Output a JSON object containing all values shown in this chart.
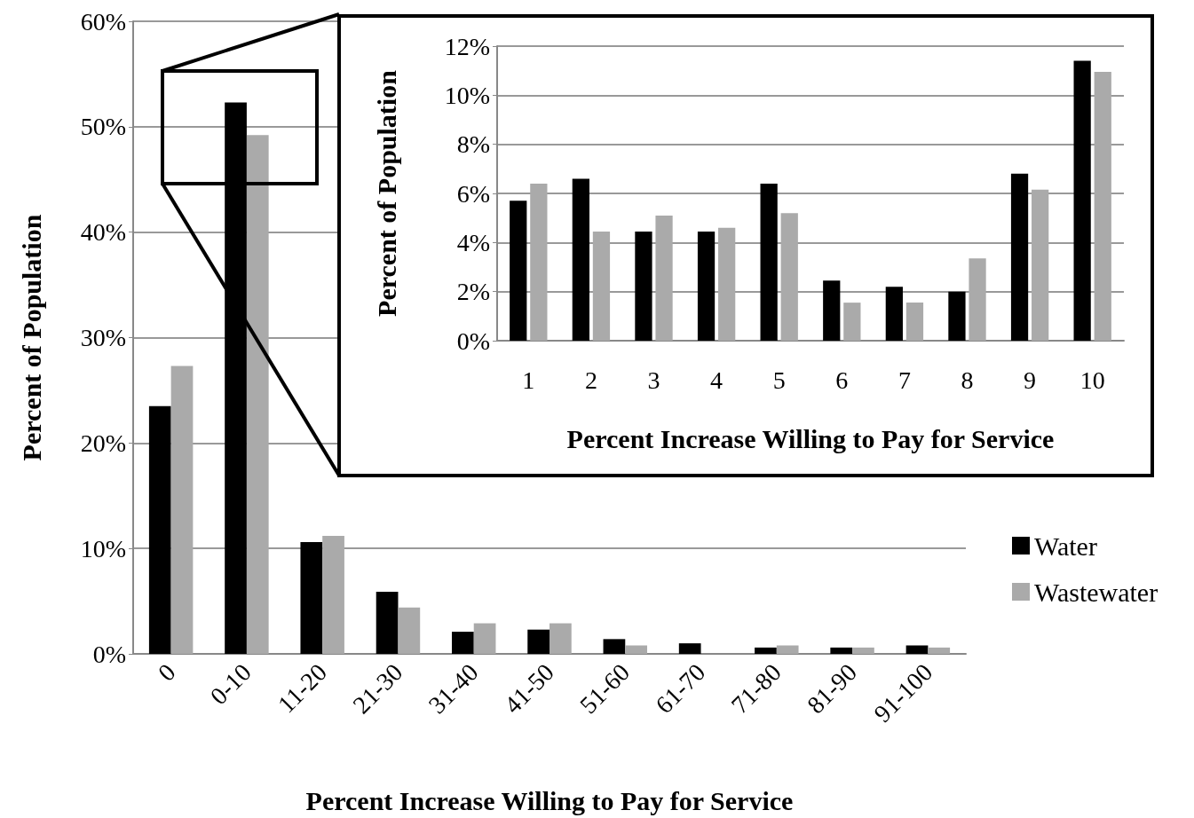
{
  "chart_data": [
    {
      "type": "bar",
      "xlabel": "Percent Increase Willing to Pay for Service",
      "ylabel": "Percent of Population",
      "categories": [
        "0",
        "0-10",
        "11-20",
        "21-30",
        "31-40",
        "41-50",
        "51-60",
        "61-70",
        "71-80",
        "81-90",
        "91-100"
      ],
      "series": [
        {
          "name": "Water",
          "color": "#000000",
          "values": [
            23.5,
            52.3,
            10.6,
            5.9,
            2.1,
            2.3,
            1.4,
            1.0,
            0.6,
            0.6,
            0.8
          ]
        },
        {
          "name": "Wastewater",
          "color": "#aaaaaa",
          "values": [
            27.3,
            49.2,
            11.2,
            4.4,
            2.9,
            2.9,
            0.8,
            null,
            0.8,
            0.6,
            0.6
          ]
        }
      ],
      "ylim": [
        0,
        60
      ],
      "yticks": [
        {
          "value": 0,
          "label": "0%"
        },
        {
          "value": 10,
          "label": "10%"
        },
        {
          "value": 20,
          "label": "20%"
        },
        {
          "value": 30,
          "label": "30%"
        },
        {
          "value": 40,
          "label": "40%"
        },
        {
          "value": 50,
          "label": "50%"
        },
        {
          "value": 60,
          "label": "60%"
        }
      ],
      "grid": "y",
      "legend": "right"
    },
    {
      "type": "bar",
      "xlabel": "Percent Increase Willing to Pay for Service",
      "ylabel": "Percent of Population",
      "categories": [
        "1",
        "2",
        "3",
        "4",
        "5",
        "6",
        "7",
        "8",
        "9",
        "10"
      ],
      "series": [
        {
          "color": "#000000",
          "values": [
            5.7,
            6.6,
            4.45,
            4.45,
            6.4,
            2.45,
            2.2,
            2.0,
            6.8,
            11.4
          ]
        },
        {
          "color": "#aaaaaa",
          "values": [
            6.4,
            4.45,
            5.1,
            4.6,
            5.2,
            1.55,
            1.55,
            3.35,
            6.15,
            10.95
          ]
        }
      ],
      "ylim": [
        0,
        12
      ],
      "yticks": [
        {
          "value": 0,
          "label": "0%"
        },
        {
          "value": 2,
          "label": "2%"
        },
        {
          "value": 4,
          "label": "4%"
        },
        {
          "value": 6,
          "label": "6%"
        },
        {
          "value": 8,
          "label": "8%"
        },
        {
          "value": 10,
          "label": "10%"
        },
        {
          "value": 12,
          "label": "12%"
        }
      ],
      "grid": "y"
    }
  ]
}
